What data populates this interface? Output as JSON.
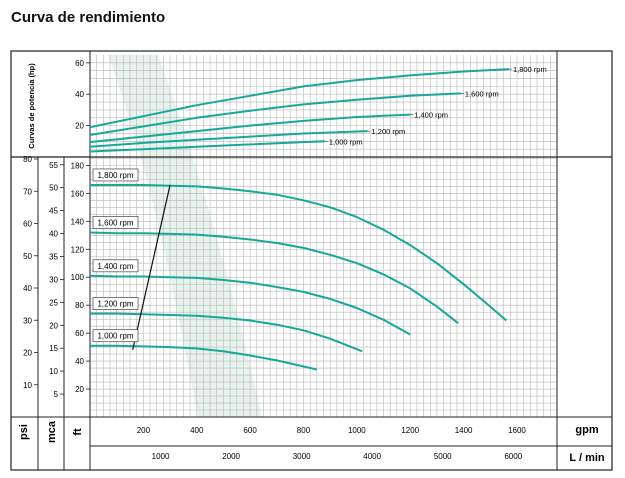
{
  "page": {
    "title": "Curva de rendimiento"
  },
  "chart_data": {
    "type": "line",
    "colors": {
      "curve": "#17a89a",
      "grid": "#b8b8b8",
      "frame": "#222222",
      "watermark": "#e6f3ee"
    },
    "power_panel": {
      "ylabel": "Curvas de potencia (hp)",
      "yticks": [
        20,
        40,
        60
      ],
      "ylim": [
        0,
        65
      ],
      "series": [
        {
          "label": "1,800 rpm",
          "x": [
            0,
            200,
            400,
            600,
            800,
            1000,
            1200,
            1400,
            1570
          ],
          "y": [
            19,
            26,
            33,
            39,
            45,
            49,
            52,
            54.5,
            56
          ]
        },
        {
          "label": "1,600 rpm",
          "x": [
            0,
            200,
            400,
            600,
            800,
            1000,
            1200,
            1390
          ],
          "y": [
            14,
            19.5,
            25,
            29.5,
            33.5,
            36.5,
            39,
            40.5
          ]
        },
        {
          "label": "1,400 rpm",
          "x": [
            0,
            200,
            400,
            600,
            800,
            1000,
            1200
          ],
          "y": [
            9.5,
            13,
            16.5,
            20,
            23,
            25.5,
            27
          ]
        },
        {
          "label": "1,200 rpm",
          "x": [
            0,
            200,
            400,
            600,
            800,
            1040
          ],
          "y": [
            6.5,
            9,
            11,
            13,
            15,
            16.5
          ]
        },
        {
          "label": "1,000 rpm",
          "x": [
            0,
            200,
            400,
            600,
            800,
            880
          ],
          "y": [
            3.5,
            5,
            6.5,
            8,
            9.5,
            10
          ]
        }
      ]
    },
    "head_panel": {
      "axes_labels": {
        "psi": "psi",
        "mca": "mca",
        "ft": "ft"
      },
      "ft_ticks": [
        20,
        40,
        60,
        80,
        100,
        120,
        140,
        160,
        180
      ],
      "mca_ticks": [
        5,
        10,
        15,
        20,
        25,
        30,
        35,
        40,
        45,
        50,
        55
      ],
      "psi_ticks": [
        10,
        20,
        30,
        40,
        50,
        60,
        70,
        80
      ],
      "ylim_ft": [
        0,
        186
      ],
      "series": [
        {
          "label": "1,800 rpm",
          "x": [
            0,
            100,
            200,
            300,
            400,
            500,
            600,
            700,
            800,
            900,
            1000,
            1100,
            1200,
            1300,
            1400,
            1500,
            1560
          ],
          "y": [
            166,
            166,
            166,
            165.5,
            165,
            163.5,
            161.5,
            159,
            155,
            150,
            143,
            134,
            123,
            110,
            95,
            79,
            69
          ]
        },
        {
          "label": "1,600 rpm",
          "x": [
            0,
            100,
            200,
            300,
            400,
            500,
            600,
            700,
            800,
            900,
            1000,
            1100,
            1200,
            1300,
            1380
          ],
          "y": [
            132,
            131.5,
            131.5,
            131,
            130.5,
            129,
            127,
            124.5,
            121,
            116,
            110,
            102,
            92,
            79,
            67
          ]
        },
        {
          "label": "1,400 rpm",
          "x": [
            0,
            100,
            200,
            300,
            400,
            500,
            600,
            700,
            800,
            900,
            1000,
            1100,
            1200
          ],
          "y": [
            101,
            100.5,
            100.5,
            100,
            99.5,
            98,
            96,
            93,
            89.5,
            84.5,
            78,
            69.5,
            59
          ]
        },
        {
          "label": "1,200 rpm",
          "x": [
            0,
            100,
            200,
            300,
            400,
            500,
            600,
            700,
            800,
            900,
            1020
          ],
          "y": [
            74,
            74,
            73.5,
            73,
            72.5,
            71,
            69,
            66,
            62,
            56,
            47
          ]
        },
        {
          "label": "1,000 rpm",
          "x": [
            0,
            100,
            200,
            300,
            400,
            500,
            600,
            700,
            850
          ],
          "y": [
            51,
            51,
            50.5,
            50,
            49,
            47,
            44,
            40.5,
            34
          ]
        }
      ],
      "bep_line": {
        "x": [
          160,
          300
        ],
        "y": [
          48,
          166
        ]
      }
    },
    "x_gpm": {
      "label": "gpm",
      "ticks": [
        200,
        400,
        600,
        800,
        1000,
        1200,
        1400,
        1600
      ],
      "range": [
        0,
        1750
      ]
    },
    "x_lmin": {
      "label": "L / min",
      "ticks": [
        1000,
        2000,
        3000,
        4000,
        5000,
        6000
      ],
      "range": [
        0,
        6620
      ]
    }
  }
}
